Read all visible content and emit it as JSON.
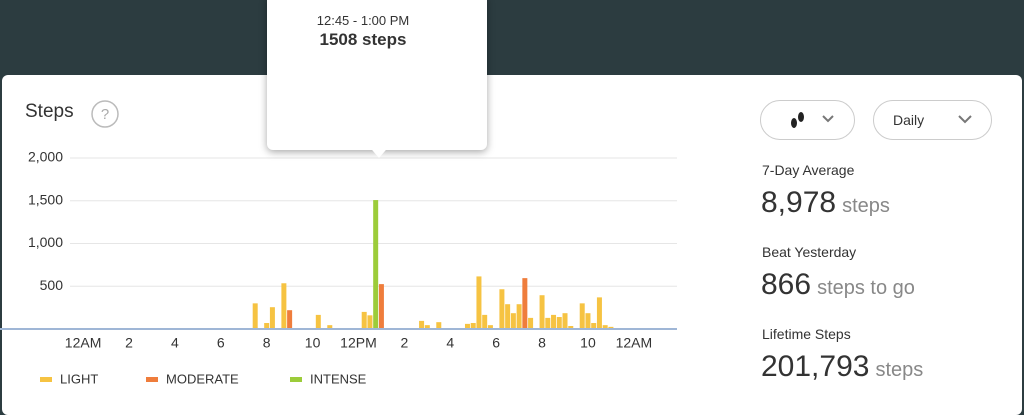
{
  "header": {
    "title": "Steps",
    "help": "?"
  },
  "tooltip": {
    "time": "12:45 - 1:00 PM",
    "value": "1508 steps"
  },
  "controls": {
    "period": "Daily"
  },
  "stats": [
    {
      "label": "7-Day Average",
      "value": "8,978",
      "unit": "steps"
    },
    {
      "label": "Beat Yesterday",
      "value": "866",
      "unit": "steps to go"
    },
    {
      "label": "Lifetime Steps",
      "value": "201,793",
      "unit": "steps"
    }
  ],
  "chart_data": {
    "type": "bar",
    "xlim": [
      -0.57,
      25.88
    ],
    "xticks": [
      {
        "value": 0,
        "label": "12AM"
      },
      2,
      4,
      6,
      8,
      10,
      {
        "value": 12,
        "label": "12PM"
      },
      {
        "value": 14,
        "label": "2"
      },
      {
        "value": 16,
        "label": "4"
      },
      {
        "value": 18,
        "label": "6"
      },
      {
        "value": 20,
        "label": "8"
      },
      {
        "value": 22,
        "label": "10"
      },
      {
        "value": 24,
        "label": "12AM"
      }
    ],
    "ylim": [
      0,
      2000
    ],
    "yticks": [
      500,
      {
        "value": 1000,
        "label": "1,000"
      },
      {
        "value": 1500,
        "label": "1,500"
      },
      {
        "value": 2000,
        "label": "2,000"
      }
    ],
    "grid": true,
    "series": [
      {
        "name": "LIGHT",
        "color": "#f6c342",
        "x": [
          7.5,
          8.0,
          8.25,
          8.75,
          10.25,
          10.75,
          12.25,
          12.5,
          14.75,
          15.0,
          15.5,
          16.75,
          17.0,
          17.25,
          17.5,
          17.75,
          18.25,
          18.5,
          18.75,
          19.0,
          19.5,
          20.0,
          20.25,
          20.5,
          20.75,
          21.0,
          21.25,
          21.75,
          22.0,
          22.25,
          22.5,
          22.75,
          23.0
        ],
        "values": [
          300,
          70,
          255,
          535,
          165,
          45,
          200,
          160,
          95,
          45,
          80,
          60,
          70,
          615,
          165,
          45,
          465,
          290,
          185,
          290,
          130,
          395,
          130,
          165,
          140,
          185,
          35,
          300,
          185,
          70,
          370,
          45,
          25
        ]
      },
      {
        "name": "MODERATE",
        "color": "#ef7d3c",
        "x": [
          9.0,
          13.0,
          19.25
        ],
        "values": [
          220,
          525,
          595
        ]
      },
      {
        "name": "INTENSE",
        "color": "#9ccc3a",
        "x": [
          12.75
        ],
        "values": [
          1508
        ]
      }
    ]
  }
}
